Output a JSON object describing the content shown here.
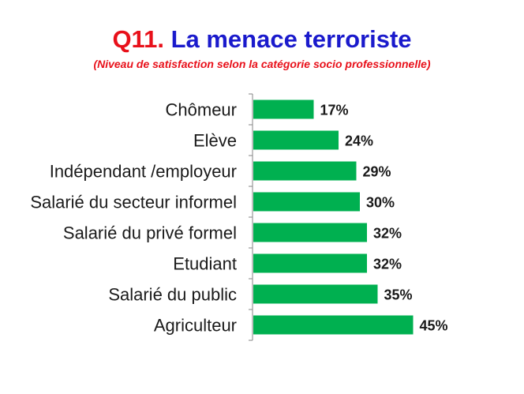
{
  "header": {
    "title_prefix": "Q11.",
    "title_main": "La  menace terroriste",
    "subtitle": "(Niveau de satisfaction selon la catégorie socio professionnelle)"
  },
  "chart_data": {
    "type": "bar",
    "orientation": "horizontal",
    "categories": [
      "Chômeur",
      "Elève",
      "Indépendant /employeur",
      "Salarié du secteur informel",
      "Salarié du privé formel",
      "Etudiant",
      "Salarié du public",
      "Agriculteur"
    ],
    "values": [
      17,
      24,
      29,
      30,
      32,
      32,
      35,
      45
    ],
    "value_labels": [
      "17%",
      "24%",
      "29%",
      "30%",
      "32%",
      "32%",
      "35%",
      "45%"
    ],
    "title": "",
    "xlabel": "",
    "ylabel": "",
    "bar_color": "#00b050",
    "grid": false
  }
}
